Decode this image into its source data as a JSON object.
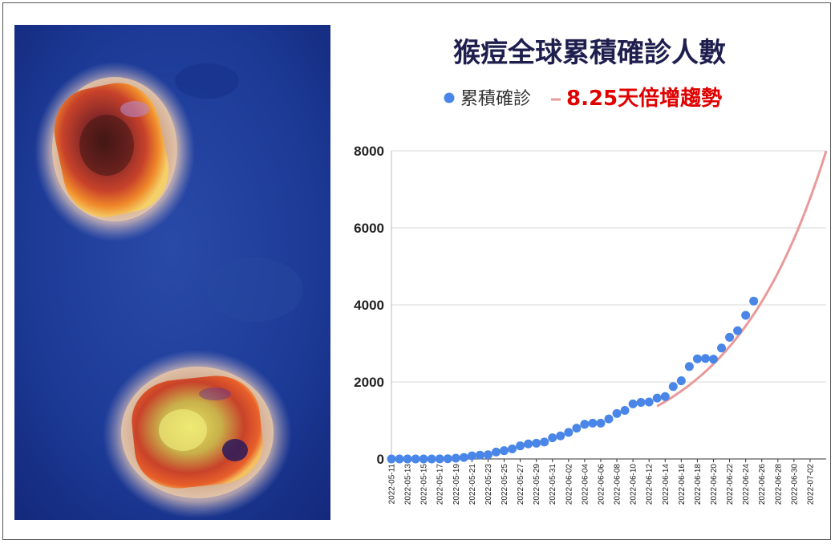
{
  "colors": {
    "series": "#4a86e8",
    "trend": "#ea9999",
    "trend_label": "#e00000",
    "title": "#1f1f4f",
    "grid": "#d9d9d9"
  },
  "chart_data": {
    "type": "scatter",
    "title": "猴痘全球累積確診人數",
    "legend": {
      "placement": "top",
      "series_label": "累積確診",
      "trend_label": "8.25天倍增趨勢"
    },
    "xlabel": "",
    "ylabel": "",
    "ylim": [
      0,
      8000
    ],
    "yticks": [
      "0",
      "2000",
      "4000",
      "6000",
      "8000"
    ],
    "grid": true,
    "xticks": [
      "2022-05-11",
      "2022-05-13",
      "2022-05-15",
      "2022-05-17",
      "2022-05-19",
      "2022-05-21",
      "2022-05-23",
      "2022-05-25",
      "2022-05-27",
      "2022-05-29",
      "2022-05-31",
      "2022-06-02",
      "2022-06-04",
      "2022-06-06",
      "2022-06-08",
      "2022-06-10",
      "2022-06-12",
      "2022-06-14",
      "2022-06-16",
      "2022-06-18",
      "2022-06-20",
      "2022-06-22",
      "2022-06-24",
      "2022-06-26",
      "2022-06-28",
      "2022-06-30",
      "2022-07-02"
    ],
    "xrange": [
      "2022-05-11",
      "2022-07-04"
    ],
    "series": [
      {
        "name": "累積確診",
        "points": [
          [
            "2022-05-11",
            0
          ],
          [
            "2022-05-12",
            0
          ],
          [
            "2022-05-13",
            0
          ],
          [
            "2022-05-14",
            0
          ],
          [
            "2022-05-15",
            0
          ],
          [
            "2022-05-16",
            0
          ],
          [
            "2022-05-17",
            2
          ],
          [
            "2022-05-18",
            5
          ],
          [
            "2022-05-19",
            20
          ],
          [
            "2022-05-20",
            40
          ],
          [
            "2022-05-21",
            80
          ],
          [
            "2022-05-22",
            100
          ],
          [
            "2022-05-23",
            110
          ],
          [
            "2022-05-24",
            180
          ],
          [
            "2022-05-25",
            215
          ],
          [
            "2022-05-26",
            260
          ],
          [
            "2022-05-27",
            340
          ],
          [
            "2022-05-28",
            390
          ],
          [
            "2022-05-29",
            410
          ],
          [
            "2022-05-30",
            440
          ],
          [
            "2022-05-31",
            550
          ],
          [
            "2022-06-01",
            600
          ],
          [
            "2022-06-02",
            690
          ],
          [
            "2022-06-03",
            800
          ],
          [
            "2022-06-04",
            900
          ],
          [
            "2022-06-05",
            930
          ],
          [
            "2022-06-06",
            930
          ],
          [
            "2022-06-07",
            1040
          ],
          [
            "2022-06-08",
            1180
          ],
          [
            "2022-06-09",
            1260
          ],
          [
            "2022-06-10",
            1430
          ],
          [
            "2022-06-11",
            1470
          ],
          [
            "2022-06-12",
            1480
          ],
          [
            "2022-06-13",
            1580
          ],
          [
            "2022-06-14",
            1620
          ],
          [
            "2022-06-15",
            1880
          ],
          [
            "2022-06-16",
            2030
          ],
          [
            "2022-06-17",
            2400
          ],
          [
            "2022-06-18",
            2600
          ],
          [
            "2022-06-19",
            2610
          ],
          [
            "2022-06-20",
            2590
          ],
          [
            "2022-06-21",
            2880
          ],
          [
            "2022-06-22",
            3160
          ],
          [
            "2022-06-23",
            3330
          ],
          [
            "2022-06-24",
            3730
          ],
          [
            "2022-06-25",
            4100
          ]
        ]
      }
    ],
    "trend": {
      "name": "8.25天倍增趨勢",
      "doubling_days": 8.25,
      "start": "2022-06-13",
      "end": "2022-07-04",
      "end_value": 8000
    }
  }
}
